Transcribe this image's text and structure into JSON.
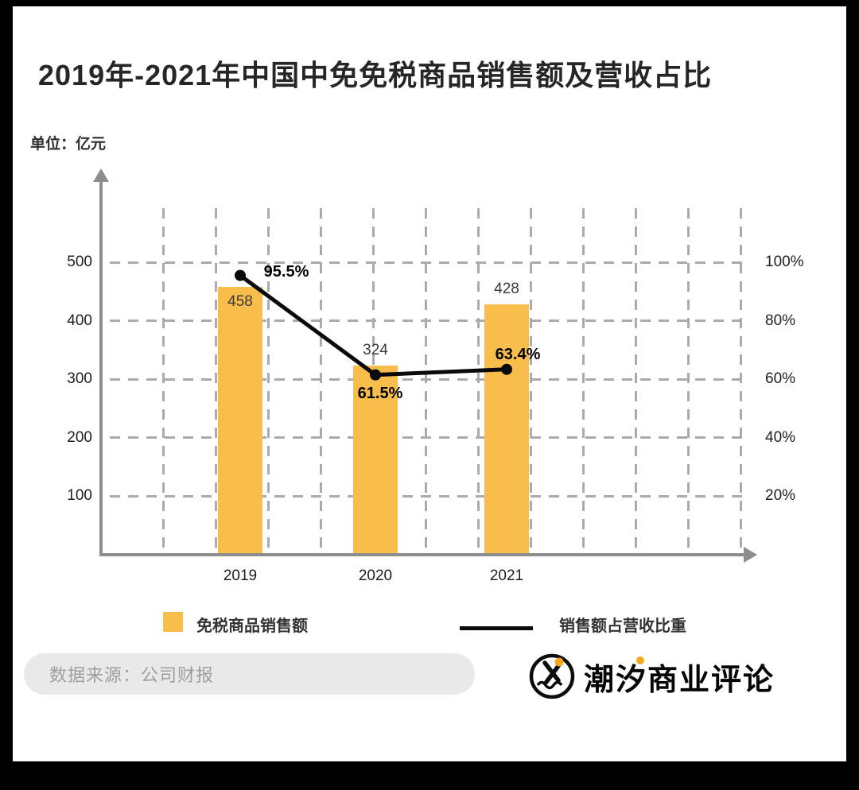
{
  "title": "2019年-2021年中国中免免税商品销售额及营收占比",
  "unit_label": "单位：亿元",
  "chart_data": {
    "type": "bar+line",
    "categories": [
      "2019",
      "2020",
      "2021"
    ],
    "series": [
      {
        "name": "免税商品销售额",
        "type": "bar",
        "values": [
          458,
          324,
          428
        ],
        "color": "#F9BD4B",
        "label_positions": [
          "inside",
          "above",
          "above"
        ]
      },
      {
        "name": "销售额占营收比重",
        "type": "line",
        "values": [
          95.5,
          61.5,
          63.4
        ],
        "labels": [
          "95.5%",
          "61.5%",
          "63.4%"
        ],
        "color": "#0a0a0a",
        "label_offsets": [
          [
            58,
            -16
          ],
          [
            6,
            12
          ],
          [
            14,
            -30
          ]
        ]
      }
    ],
    "left_axis": {
      "unit": "亿元",
      "ticks_top_to_bottom": [
        500,
        400,
        300,
        200,
        100
      ],
      "min": 0
    },
    "right_axis": {
      "ticks_top_to_bottom": [
        "100%",
        "80%",
        "60%",
        "40%",
        "20%"
      ]
    },
    "grid": "dashed",
    "legend_position": "bottom"
  },
  "source": "数据来源：公司财报",
  "brand": "潮汐商业评论",
  "colors": {
    "bar": "#F9BD4B",
    "line": "#0a0a0a",
    "accent_dot": "#F5A81C",
    "frame": "#000000",
    "grid": "#ababab"
  }
}
